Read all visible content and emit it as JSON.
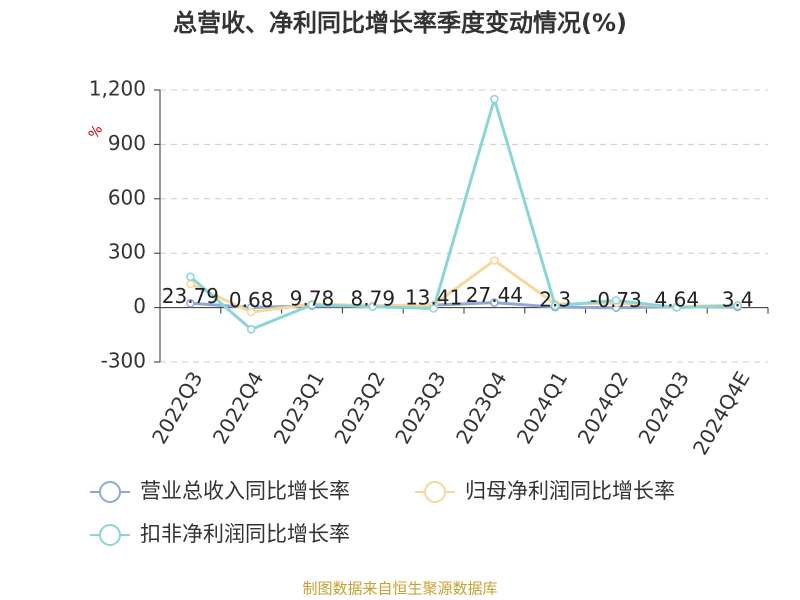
{
  "chart_data": {
    "type": "line",
    "title": "总营收、净利同比增长率季度变动情况(%)",
    "y_label": "%",
    "footer": "制图数据来自恒生聚源数据库",
    "categories": [
      "2022Q3",
      "2022Q4",
      "2023Q1",
      "2023Q2",
      "2023Q3",
      "2023Q4",
      "2024Q1",
      "2024Q2",
      "2024Q3",
      "2024Q4E"
    ],
    "series": [
      {
        "name": "营业总收入同比增长率",
        "color": "#8fa8d8",
        "values": [
          23.79,
          0.68,
          9.78,
          8.79,
          13.41,
          27.44,
          2.3,
          -0.73,
          4.64,
          3.4
        ],
        "show_labels": true
      },
      {
        "name": "归母净利润同比增长率",
        "color": "#f8d79b",
        "values": [
          130,
          -25,
          20,
          10,
          15,
          260,
          20,
          25,
          5,
          15
        ]
      },
      {
        "name": "扣非净利润同比增长率",
        "color": "#8dd4d8",
        "values": [
          170,
          -120,
          15,
          5,
          -5,
          1150,
          10,
          40,
          0,
          10
        ]
      }
    ],
    "ylim": [
      -300,
      1200
    ],
    "yticks": [
      -300,
      0,
      300,
      600,
      900,
      {
        "value": 1200,
        "label": "1,200"
      }
    ],
    "grid": true
  }
}
